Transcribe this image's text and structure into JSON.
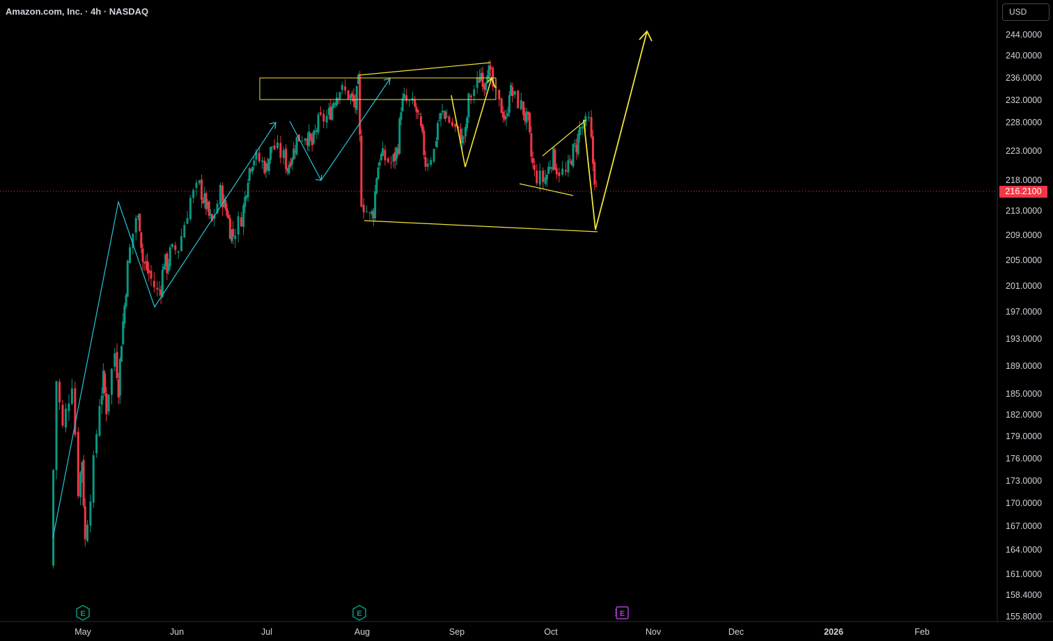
{
  "header": {
    "title": "Amazon.com, Inc. · 4h · NASDAQ"
  },
  "axis": {
    "currency": "USD"
  },
  "last_price": "216.2100",
  "colors": {
    "up": "#089981",
    "down": "#f23645",
    "last_price": "#f23645",
    "annotation_yellow": "#f2e538",
    "annotation_cyan": "#26c6da",
    "earnings_past": "#089981",
    "earnings_future": "#b03cd3"
  },
  "icons": {
    "earnings": "earnings-e-icon"
  },
  "chart_data": {
    "type": "line",
    "title": "Amazon.com, Inc. · 4h · NASDAQ",
    "ylabel": "",
    "xlabel": "",
    "x_ticks": [
      "May",
      "Jun",
      "Jul",
      "Aug",
      "Sep",
      "Oct",
      "Nov",
      "Dec",
      "2026",
      "Feb"
    ],
    "y_ticks": [
      "244.0000",
      "240.0000",
      "236.0000",
      "232.0000",
      "228.0000",
      "223.0000",
      "218.0000",
      "213.0000",
      "209.0000",
      "205.0000",
      "201.0000",
      "197.0000",
      "193.0000",
      "189.0000",
      "185.0000",
      "182.0000",
      "179.0000",
      "176.0000",
      "173.0000",
      "170.0000",
      "167.0000",
      "164.0000",
      "161.0000",
      "158.4000",
      "155.8000"
    ],
    "ylim": [
      155.8,
      245.5
    ],
    "grid": false,
    "series": [
      {
        "values": [
          {
            "x": "2025-04-21",
            "y": 162
          },
          {
            "x": "2025-04-23",
            "y": 187
          },
          {
            "x": "2025-04-25",
            "y": 180
          },
          {
            "x": "2025-04-28",
            "y": 187
          },
          {
            "x": "2025-04-30",
            "y": 172
          },
          {
            "x": "2025-05-01",
            "y": 176
          },
          {
            "x": "2025-05-02",
            "y": 165
          },
          {
            "x": "2025-05-05",
            "y": 175
          },
          {
            "x": "2025-05-07",
            "y": 184
          },
          {
            "x": "2025-05-08",
            "y": 187
          },
          {
            "x": "2025-05-09",
            "y": 183
          },
          {
            "x": "2025-05-12",
            "y": 191
          },
          {
            "x": "2025-05-13",
            "y": 186
          },
          {
            "x": "2025-05-14",
            "y": 193
          },
          {
            "x": "2025-05-15",
            "y": 198
          },
          {
            "x": "2025-05-16",
            "y": 204
          },
          {
            "x": "2025-05-19",
            "y": 212
          },
          {
            "x": "2025-05-20",
            "y": 211
          },
          {
            "x": "2025-05-21",
            "y": 205
          },
          {
            "x": "2025-05-22",
            "y": 204
          },
          {
            "x": "2025-05-23",
            "y": 203
          },
          {
            "x": "2025-05-26",
            "y": 200
          },
          {
            "x": "2025-05-27",
            "y": 201
          },
          {
            "x": "2025-05-28",
            "y": 205
          },
          {
            "x": "2025-05-29",
            "y": 204
          },
          {
            "x": "2025-05-30",
            "y": 206
          },
          {
            "x": "2025-06-02",
            "y": 207
          },
          {
            "x": "2025-06-04",
            "y": 211
          },
          {
            "x": "2025-06-06",
            "y": 215
          },
          {
            "x": "2025-06-09",
            "y": 217
          },
          {
            "x": "2025-06-10",
            "y": 215
          },
          {
            "x": "2025-06-11",
            "y": 214
          },
          {
            "x": "2025-06-12",
            "y": 212
          },
          {
            "x": "2025-06-13",
            "y": 211
          },
          {
            "x": "2025-06-16",
            "y": 216
          },
          {
            "x": "2025-06-17",
            "y": 214
          },
          {
            "x": "2025-06-18",
            "y": 213
          },
          {
            "x": "2025-06-19",
            "y": 210
          },
          {
            "x": "2025-06-20",
            "y": 209
          },
          {
            "x": "2025-06-23",
            "y": 212
          },
          {
            "x": "2025-06-24",
            "y": 215
          },
          {
            "x": "2025-06-25",
            "y": 219
          },
          {
            "x": "2025-06-26",
            "y": 221
          },
          {
            "x": "2025-06-27",
            "y": 222
          },
          {
            "x": "2025-06-30",
            "y": 221
          },
          {
            "x": "2025-07-01",
            "y": 220
          },
          {
            "x": "2025-07-02",
            "y": 222
          },
          {
            "x": "2025-07-03",
            "y": 224
          },
          {
            "x": "2025-07-07",
            "y": 222
          },
          {
            "x": "2025-07-08",
            "y": 220
          },
          {
            "x": "2025-07-09",
            "y": 222
          },
          {
            "x": "2025-07-10",
            "y": 223
          },
          {
            "x": "2025-07-11",
            "y": 225
          },
          {
            "x": "2025-07-14",
            "y": 226
          },
          {
            "x": "2025-07-15",
            "y": 225
          },
          {
            "x": "2025-07-16",
            "y": 224
          },
          {
            "x": "2025-07-17",
            "y": 226
          },
          {
            "x": "2025-07-18",
            "y": 228
          },
          {
            "x": "2025-07-21",
            "y": 229
          },
          {
            "x": "2025-07-22",
            "y": 230
          },
          {
            "x": "2025-07-23",
            "y": 232
          },
          {
            "x": "2025-07-24",
            "y": 233
          },
          {
            "x": "2025-07-25",
            "y": 234
          },
          {
            "x": "2025-07-28",
            "y": 233
          },
          {
            "x": "2025-07-29",
            "y": 232
          },
          {
            "x": "2025-07-30",
            "y": 231
          },
          {
            "x": "2025-07-31",
            "y": 235
          },
          {
            "x": "2025-08-01",
            "y": 215
          },
          {
            "x": "2025-08-04",
            "y": 212
          },
          {
            "x": "2025-08-05",
            "y": 213
          },
          {
            "x": "2025-08-06",
            "y": 219
          },
          {
            "x": "2025-08-07",
            "y": 222
          },
          {
            "x": "2025-08-08",
            "y": 222
          },
          {
            "x": "2025-08-11",
            "y": 221
          },
          {
            "x": "2025-08-12",
            "y": 222
          },
          {
            "x": "2025-08-13",
            "y": 224
          },
          {
            "x": "2025-08-14",
            "y": 231
          },
          {
            "x": "2025-08-15",
            "y": 232
          },
          {
            "x": "2025-08-18",
            "y": 231
          },
          {
            "x": "2025-08-19",
            "y": 230
          },
          {
            "x": "2025-08-20",
            "y": 228
          },
          {
            "x": "2025-08-21",
            "y": 225
          },
          {
            "x": "2025-08-22",
            "y": 221
          },
          {
            "x": "2025-08-25",
            "y": 223
          },
          {
            "x": "2025-08-26",
            "y": 228
          },
          {
            "x": "2025-08-27",
            "y": 229
          },
          {
            "x": "2025-08-28",
            "y": 230
          },
          {
            "x": "2025-08-29",
            "y": 229
          },
          {
            "x": "2025-09-02",
            "y": 226
          },
          {
            "x": "2025-09-03",
            "y": 225
          },
          {
            "x": "2025-09-04",
            "y": 226
          },
          {
            "x": "2025-09-05",
            "y": 232
          },
          {
            "x": "2025-09-08",
            "y": 235
          },
          {
            "x": "2025-09-09",
            "y": 237
          },
          {
            "x": "2025-09-10",
            "y": 235
          },
          {
            "x": "2025-09-11",
            "y": 238
          },
          {
            "x": "2025-09-12",
            "y": 236
          },
          {
            "x": "2025-09-15",
            "y": 231
          },
          {
            "x": "2025-09-16",
            "y": 230
          },
          {
            "x": "2025-09-17",
            "y": 228
          },
          {
            "x": "2025-09-18",
            "y": 234
          },
          {
            "x": "2025-09-19",
            "y": 233
          },
          {
            "x": "2025-09-22",
            "y": 231
          },
          {
            "x": "2025-09-23",
            "y": 229
          },
          {
            "x": "2025-09-24",
            "y": 228
          },
          {
            "x": "2025-09-25",
            "y": 222
          },
          {
            "x": "2025-09-26",
            "y": 219
          },
          {
            "x": "2025-09-29",
            "y": 218
          },
          {
            "x": "2025-09-30",
            "y": 219
          },
          {
            "x": "2025-10-01",
            "y": 221
          },
          {
            "x": "2025-10-02",
            "y": 222
          },
          {
            "x": "2025-10-03",
            "y": 220
          },
          {
            "x": "2025-10-06",
            "y": 219
          },
          {
            "x": "2025-10-07",
            "y": 221
          },
          {
            "x": "2025-10-08",
            "y": 223
          },
          {
            "x": "2025-10-09",
            "y": 224
          },
          {
            "x": "2025-10-10",
            "y": 227
          },
          {
            "x": "2025-10-13",
            "y": 228
          },
          {
            "x": "2025-10-14",
            "y": 221
          },
          {
            "x": "2025-10-15",
            "y": 216.21
          }
        ]
      }
    ]
  }
}
